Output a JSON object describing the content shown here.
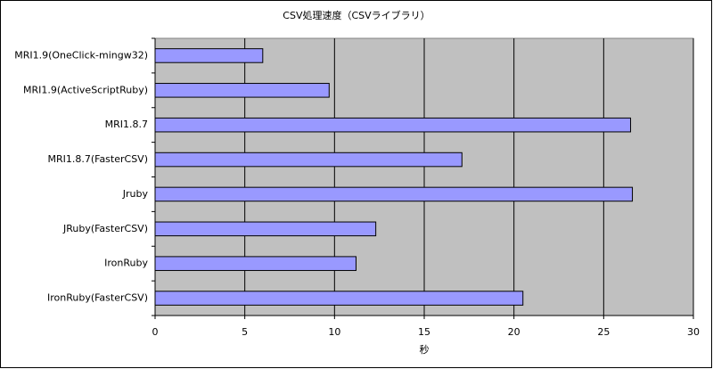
{
  "chart_data": {
    "type": "hbar",
    "title": "CSV処理速度（CSVライブラリ）",
    "x_label": "秒",
    "categories": [
      "MRI1.9(OneClick-mingw32)",
      "MRI1.9(ActiveScriptRuby)",
      "MRI1.8.7",
      "MRI1.8.7(FasterCSV)",
      "Jruby",
      "JRuby(FasterCSV)",
      "IronRuby",
      "IronRuby(FasterCSV)"
    ],
    "values": [
      6.0,
      9.7,
      26.5,
      17.1,
      26.6,
      12.3,
      11.2,
      20.5
    ],
    "color": "#9999ff",
    "plot_background": "#c0c0c0",
    "xlim": [
      0,
      30
    ],
    "xticks": [
      0,
      5,
      10,
      15,
      20,
      25,
      30
    ],
    "grid": true
  }
}
